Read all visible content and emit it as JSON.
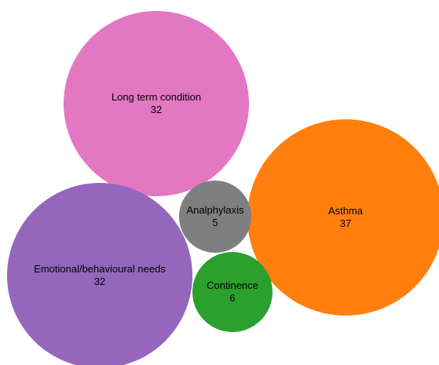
{
  "chart_data": {
    "type": "bubble",
    "bubbles": [
      {
        "label": "Long term condition",
        "value": 32,
        "color": "#e377c2"
      },
      {
        "label": "Asthma",
        "value": 37,
        "color": "#ff7f0e"
      },
      {
        "label": "Analphylaxis",
        "value": 5,
        "color": "#7f7f7f"
      },
      {
        "label": "Emotional/behavioural needs",
        "value": 32,
        "color": "#9467bd"
      },
      {
        "label": "Continence",
        "value": 6,
        "color": "#2ca02c"
      }
    ]
  }
}
